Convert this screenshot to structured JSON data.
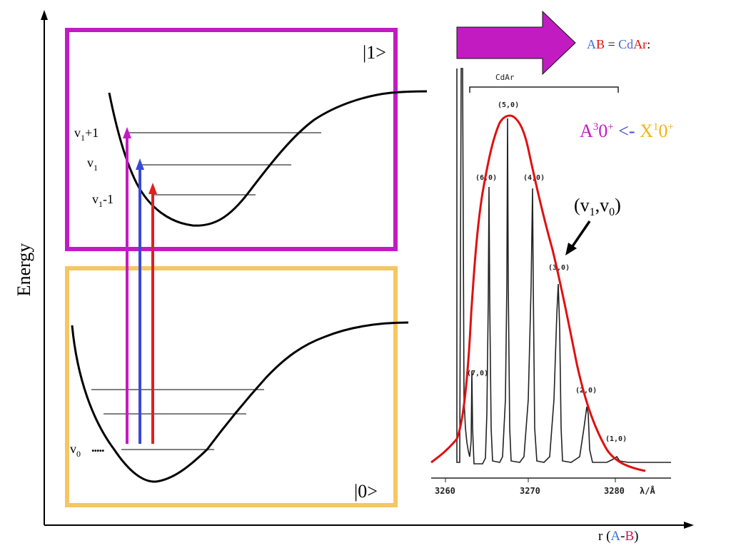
{
  "colors": {
    "upper_box": "#c21bc2",
    "lower_box": "#f6c662",
    "arrow_violet": "#c21bc2",
    "arrow_blue": "#3a48d6",
    "arrow_red": "#e02020",
    "envelope": "#e01010",
    "blue_text": "#3a6fe0",
    "red_text": "#e01010",
    "orange_text": "#f2b313",
    "magenta_text": "#c21bc2",
    "pink_text": "#e0105a"
  },
  "axes": {
    "y_label": "Energy",
    "x_label_prefix": "r (",
    "x_label_a": "A",
    "x_label_dash": "-",
    "x_label_b": "B",
    "x_label_suffix": ")"
  },
  "upper_state": {
    "label": "|1>",
    "levels": [
      {
        "base": "v",
        "sub": "1",
        "suffix": "+1"
      },
      {
        "base": "v",
        "sub": "1",
        "suffix": ""
      },
      {
        "base": "v",
        "sub": "1",
        "suffix": "-1"
      }
    ]
  },
  "lower_state": {
    "label": "|0>",
    "v0_base": "v",
    "v0_sub": "0",
    "v0_dots": "....."
  },
  "equation": {
    "a": "A",
    "b": "B",
    "eq": " = ",
    "cd": "Cd",
    "ar": "Ar",
    "colon": ":"
  },
  "transition": {
    "a_part": "A",
    "a_sup": "3",
    "a_rest": "0",
    "a_sup2": "+",
    "arrow": " <- ",
    "x_part": "X",
    "x_sup": "1",
    "x_rest": "0",
    "x_sup2": "+"
  },
  "annotation": {
    "label": "(v₁,v₀)",
    "open": "(v",
    "sub1": "1",
    "comma": ",v",
    "sub0": "0",
    "close": ")"
  },
  "spectrum": {
    "bracket_label": "CdAr",
    "x_unit": "λ/Å",
    "x_ticks": [
      "3260",
      "3270",
      "3280"
    ],
    "peaks": [
      {
        "label": "(7,0)"
      },
      {
        "label": "(6,0)"
      },
      {
        "label": "(5,0)"
      },
      {
        "label": "(4,0)"
      },
      {
        "label": "(3,0)"
      },
      {
        "label": "(2,0)"
      },
      {
        "label": "(1,0)"
      }
    ]
  }
}
